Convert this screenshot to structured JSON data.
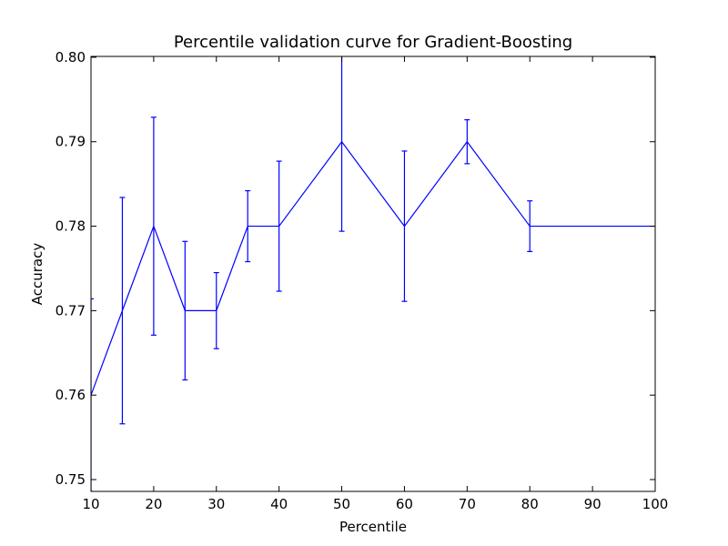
{
  "chart_data": {
    "type": "errorbar",
    "title": "Percentile validation curve for Gradient-Boosting",
    "xlabel": "Percentile",
    "ylabel": "Accuracy",
    "x": [
      10,
      15,
      20,
      25,
      30,
      35,
      40,
      50,
      60,
      70,
      80,
      100
    ],
    "series": [
      {
        "color": "#0000ff",
        "values": [
          0.76,
          0.77,
          0.78,
          0.77,
          0.77,
          0.78,
          0.78,
          0.79,
          0.78,
          0.79,
          0.78,
          0.78
        ],
        "errors": [
          0.0114,
          0.0134,
          0.0129,
          0.0082,
          0.0045,
          0.0042,
          0.0077,
          0.0106,
          0.0089,
          0.0026,
          0.003,
          null
        ]
      }
    ],
    "xlim": [
      10,
      100
    ],
    "xticks": [
      10,
      20,
      30,
      40,
      50,
      60,
      70,
      80,
      90,
      100
    ],
    "ylim": [
      0.7486,
      0.8001
    ],
    "yticks": [
      0.75,
      0.76,
      0.77,
      0.78,
      0.79,
      {
        "value": 0.8,
        "label": "0.80"
      }
    ]
  }
}
